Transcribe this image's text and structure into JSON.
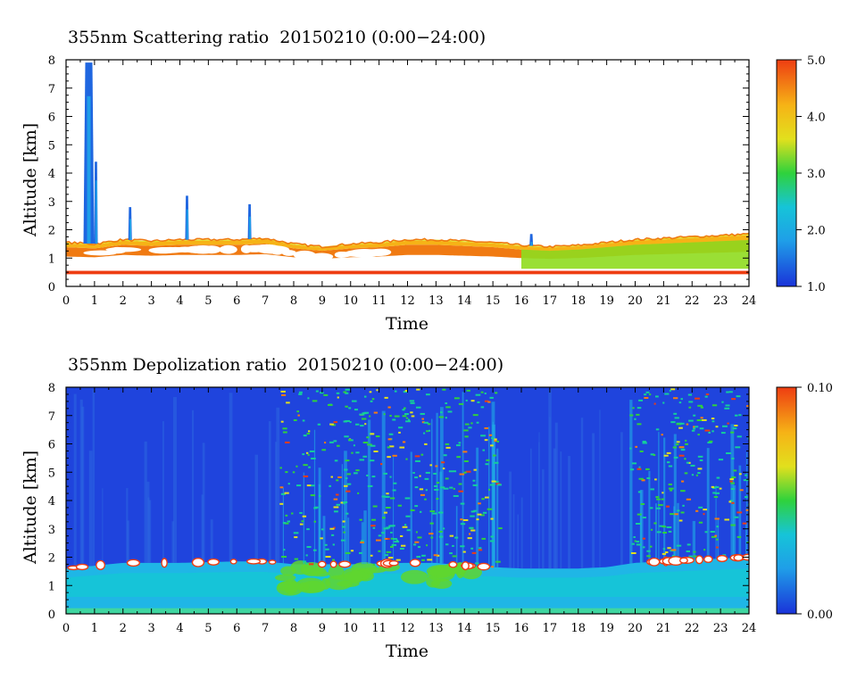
{
  "colors": {
    "scale": [
      "#1a33d9",
      "#1f66e0",
      "#1f9ee8",
      "#16c4d8",
      "#14cf9a",
      "#2fd23c",
      "#8fdb1f",
      "#e2e01d",
      "#f6b316",
      "#f57c12",
      "#ee3d12"
    ],
    "background": "#ffffff",
    "axis": "#000000"
  },
  "chart_data": [
    {
      "type": "heatmap",
      "title": "355nm Scattering ratio  20150210 (0:00−24:00)",
      "xlabel": "Time",
      "ylabel": "Altitude [km]",
      "xlim": [
        0,
        24
      ],
      "ylim": [
        0,
        8
      ],
      "x_ticks": [
        "0",
        "1",
        "2",
        "3",
        "4",
        "5",
        "6",
        "7",
        "8",
        "9",
        "10",
        "11",
        "12",
        "13",
        "14",
        "15",
        "16",
        "17",
        "18",
        "19",
        "20",
        "21",
        "22",
        "23",
        "24"
      ],
      "y_ticks": [
        "0",
        "1",
        "2",
        "3",
        "4",
        "5",
        "6",
        "7",
        "8"
      ],
      "colorbar": {
        "min": 1.0,
        "max": 5.0,
        "labels": [
          "1.0",
          "2.0",
          "3.0",
          "4.0",
          "5.0"
        ]
      },
      "boundary_layer_top_km": [
        [
          0,
          1.55
        ],
        [
          1,
          1.5
        ],
        [
          2,
          1.65
        ],
        [
          3,
          1.6
        ],
        [
          4,
          1.65
        ],
        [
          5,
          1.65
        ],
        [
          6,
          1.65
        ],
        [
          7,
          1.7
        ],
        [
          8,
          1.5
        ],
        [
          9,
          1.4
        ],
        [
          10,
          1.5
        ],
        [
          11,
          1.55
        ],
        [
          12,
          1.65
        ],
        [
          13,
          1.65
        ],
        [
          14,
          1.6
        ],
        [
          15,
          1.55
        ],
        [
          16,
          1.45
        ],
        [
          17,
          1.4
        ],
        [
          18,
          1.45
        ],
        [
          19,
          1.55
        ],
        [
          20,
          1.65
        ],
        [
          21,
          1.7
        ],
        [
          22,
          1.75
        ],
        [
          23,
          1.8
        ],
        [
          24,
          1.85
        ]
      ],
      "plumes": [
        {
          "t": 0.8,
          "top_km": 7.9
        },
        {
          "t": 1.05,
          "top_km": 4.4
        },
        {
          "t": 2.25,
          "top_km": 2.8
        },
        {
          "t": 4.25,
          "top_km": 3.2
        },
        {
          "t": 6.45,
          "top_km": 2.9
        },
        {
          "t": 16.35,
          "top_km": 1.85
        }
      ]
    },
    {
      "type": "heatmap",
      "title": "355nm Depolization ratio  20150210 (0:00−24:00)",
      "xlabel": "Time",
      "ylabel": "Altitude [km]",
      "xlim": [
        0,
        24
      ],
      "ylim": [
        0,
        8
      ],
      "x_ticks": [
        "0",
        "1",
        "2",
        "3",
        "4",
        "5",
        "6",
        "7",
        "8",
        "9",
        "10",
        "11",
        "12",
        "13",
        "14",
        "15",
        "16",
        "17",
        "18",
        "19",
        "20",
        "21",
        "22",
        "23",
        "24"
      ],
      "y_ticks": [
        "0",
        "1",
        "2",
        "3",
        "4",
        "5",
        "6",
        "7",
        "8"
      ],
      "colorbar": {
        "min": 0.0,
        "max": 0.1,
        "labels": [
          "0.00",
          "0.10"
        ]
      },
      "boundary_layer_top_km": [
        [
          0,
          1.6
        ],
        [
          2,
          1.8
        ],
        [
          4,
          1.8
        ],
        [
          6,
          1.85
        ],
        [
          7,
          1.85
        ],
        [
          8,
          1.75
        ],
        [
          10,
          1.75
        ],
        [
          12,
          1.8
        ],
        [
          13,
          1.8
        ],
        [
          14,
          1.7
        ],
        [
          15,
          1.65
        ],
        [
          16,
          1.6
        ],
        [
          18,
          1.6
        ],
        [
          19,
          1.65
        ],
        [
          20,
          1.8
        ],
        [
          22,
          1.9
        ],
        [
          24,
          2.0
        ]
      ],
      "noisy_bands": [
        [
          7.5,
          12.0
        ],
        [
          12.0,
          15.2
        ],
        [
          19.8,
          24.0
        ]
      ]
    }
  ]
}
